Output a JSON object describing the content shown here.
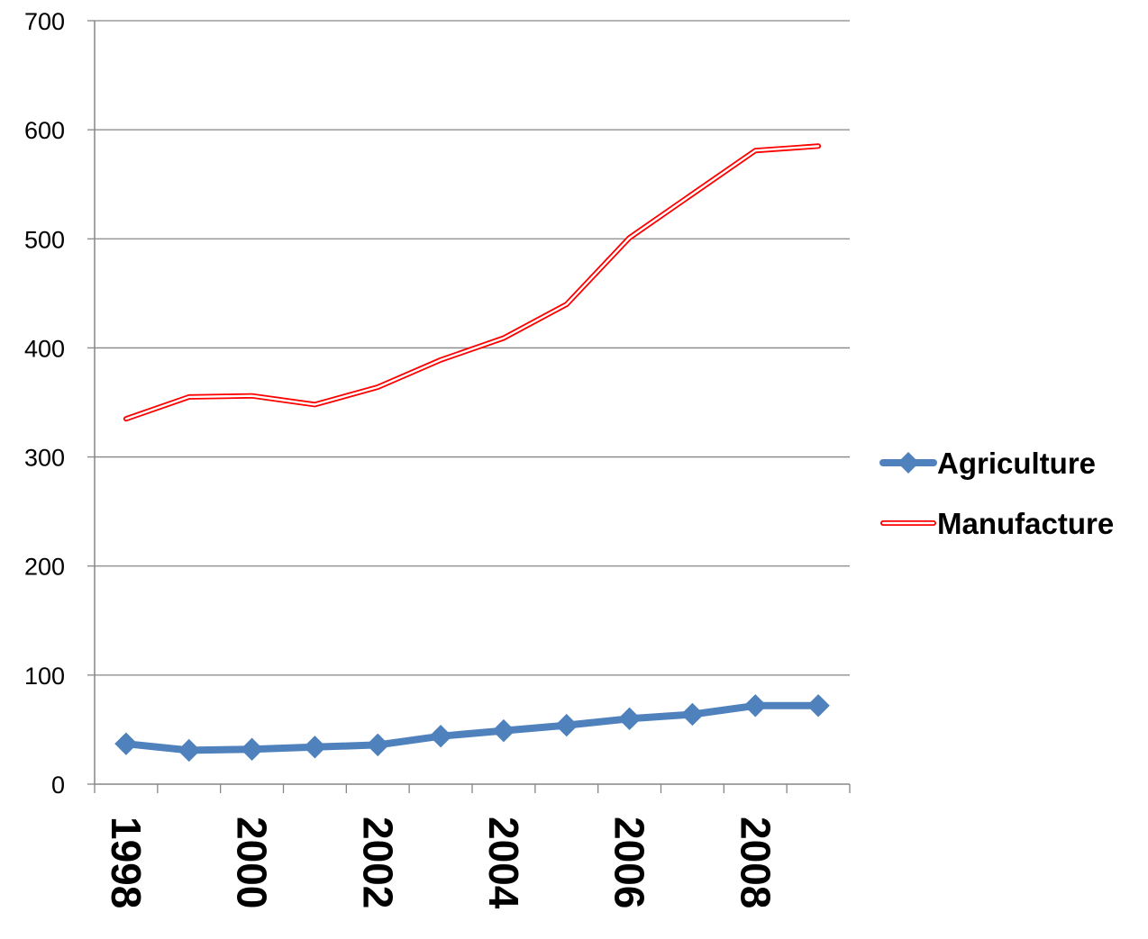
{
  "chart_data": {
    "type": "line",
    "title": "",
    "xlabel": "",
    "ylabel": "",
    "x": [
      1998,
      1999,
      2000,
      2001,
      2002,
      2003,
      2004,
      2005,
      2006,
      2007,
      2008,
      2009
    ],
    "x_tick_labels": [
      "1998",
      "2000",
      "2002",
      "2004",
      "2006",
      "2008"
    ],
    "y_tick_labels": [
      "0",
      "100",
      "200",
      "300",
      "400",
      "500",
      "600",
      "700"
    ],
    "ylim": [
      0,
      700
    ],
    "grid": "horizontal",
    "legend_position": "right",
    "series": [
      {
        "name": "Agriculture",
        "color": "#4F81BD",
        "marker": "diamond",
        "values": [
          37,
          31,
          32,
          34,
          36,
          44,
          49,
          54,
          60,
          64,
          72,
          72
        ]
      },
      {
        "name": "Manufacture",
        "color": "#FF0000",
        "marker": "none",
        "style": "double-line",
        "values": [
          335,
          355,
          356,
          348,
          364,
          389,
          409,
          440,
          501,
          541,
          581,
          585
        ]
      }
    ]
  }
}
